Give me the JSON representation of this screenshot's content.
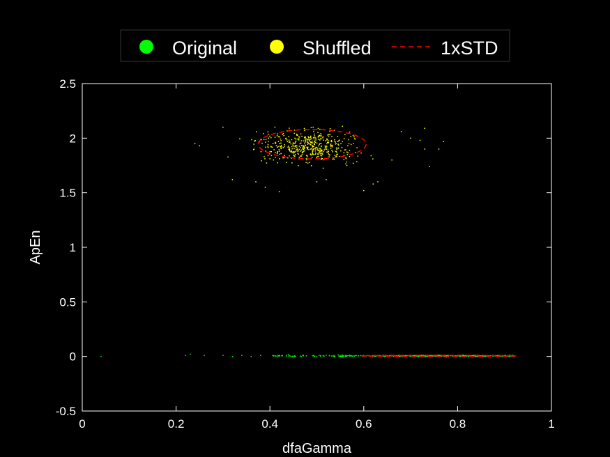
{
  "chart_data": {
    "type": "scatter",
    "xlabel": "dfaGamma",
    "ylabel": "ApEn",
    "xlim": [
      0,
      1
    ],
    "ylim": [
      -0.5,
      2.5
    ],
    "xticks": [
      "0",
      "0.2",
      "0.4",
      "0.6",
      "0.8",
      "1"
    ],
    "xtick_values": [
      0,
      0.2,
      0.4,
      0.6,
      0.8,
      1
    ],
    "yticks": [
      "-0.5",
      "0",
      "0.5",
      "1",
      "1.5",
      "2",
      "2.5"
    ],
    "ytick_values": [
      -0.5,
      0,
      0.5,
      1,
      1.5,
      2,
      2.5
    ],
    "grid": false,
    "legend_placement": "top-center",
    "series": [
      {
        "name": "Original",
        "color": "#00ff00",
        "marker": "dot",
        "cluster": {
          "x_range": [
            0.04,
            0.92
          ],
          "dense_from": 0.55,
          "y_center": 0.005,
          "y_spread": 0.012
        },
        "points": [
          [
            0.04,
            0.0
          ],
          [
            0.22,
            0.01
          ],
          [
            0.23,
            0.02
          ],
          [
            0.26,
            0.01
          ],
          [
            0.3,
            0.01
          ],
          [
            0.32,
            0.0
          ],
          [
            0.34,
            0.01
          ],
          [
            0.36,
            0.0
          ],
          [
            0.38,
            0.01
          ],
          [
            0.42,
            0.01
          ],
          [
            0.44,
            0.02
          ],
          [
            0.45,
            0.0
          ],
          [
            0.47,
            0.01
          ],
          [
            0.5,
            0.0
          ],
          [
            0.52,
            0.01
          ]
        ]
      },
      {
        "name": "Shuffled",
        "color": "#ffff00",
        "marker": "dot",
        "cluster": {
          "x_center": 0.48,
          "x_spread": 0.09,
          "y_center": 1.93,
          "y_spread": 0.12
        },
        "points": [
          [
            0.24,
            1.95
          ],
          [
            0.25,
            1.93
          ],
          [
            0.3,
            2.1
          ],
          [
            0.32,
            1.62
          ],
          [
            0.37,
            1.6
          ],
          [
            0.39,
            1.55
          ],
          [
            0.42,
            1.51
          ],
          [
            0.5,
            1.6
          ],
          [
            0.52,
            1.62
          ],
          [
            0.6,
            1.52
          ],
          [
            0.62,
            1.58
          ],
          [
            0.63,
            1.6
          ],
          [
            0.66,
            1.8
          ],
          [
            0.68,
            2.06
          ],
          [
            0.7,
            2.0
          ],
          [
            0.72,
            1.98
          ],
          [
            0.73,
            1.9
          ],
          [
            0.73,
            2.09
          ],
          [
            0.74,
            1.74
          ],
          [
            0.76,
            1.9
          ],
          [
            0.77,
            1.97
          ]
        ]
      },
      {
        "name": "1xSTD",
        "color": "#ff0000",
        "line": "dashed",
        "ellipses": [
          {
            "cx": 0.49,
            "cy": 1.945,
            "rx": 0.115,
            "ry": 0.135
          },
          {
            "cx": 0.76,
            "cy": 0.005,
            "rx": 0.165,
            "ry": 0.005
          }
        ]
      }
    ]
  }
}
